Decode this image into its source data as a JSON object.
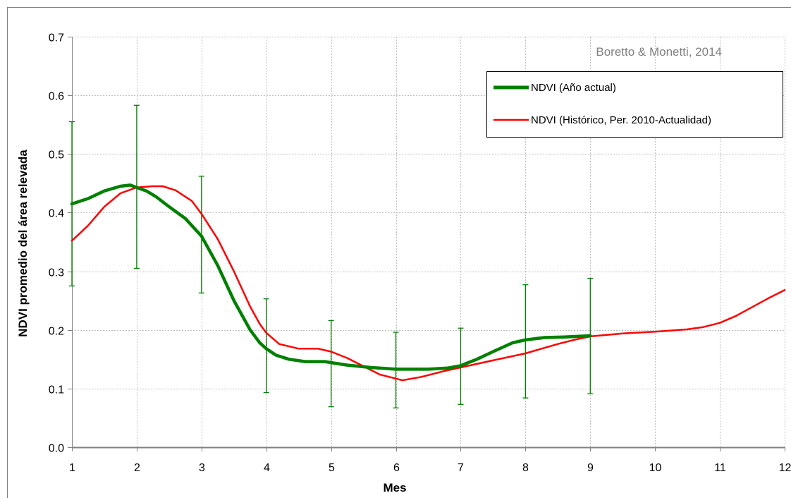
{
  "chart_data": {
    "type": "line",
    "xlabel": "Mes",
    "ylabel": "NDVI promedio del área relevada",
    "xlim": [
      1,
      12
    ],
    "ylim": [
      0,
      0.7
    ],
    "x_ticks": [
      "1",
      "2",
      "3",
      "4",
      "5",
      "6",
      "7",
      "8",
      "9",
      "10",
      "11",
      "12"
    ],
    "y_ticks": [
      "0.0",
      "0.1",
      "0.2",
      "0.3",
      "0.4",
      "0.5",
      "0.6",
      "0.7"
    ],
    "grid": true,
    "annotation": "Boretto & Monetti, 2014",
    "legend_position": "top-right",
    "series": [
      {
        "name": "NDVI (Año actual)",
        "color": "#008000",
        "x": [
          1,
          1.25,
          1.5,
          1.75,
          1.9,
          2,
          2.15,
          2.3,
          2.5,
          2.75,
          3,
          3.25,
          3.5,
          3.75,
          3.9,
          4,
          4.15,
          4.35,
          4.6,
          4.9,
          5.25,
          5.6,
          6,
          6.5,
          6.8,
          7,
          7.25,
          7.5,
          7.8,
          8,
          8.3,
          8.6,
          9
        ],
        "y": [
          0.415,
          0.424,
          0.437,
          0.445,
          0.447,
          0.443,
          0.437,
          0.427,
          0.41,
          0.39,
          0.36,
          0.31,
          0.25,
          0.2,
          0.178,
          0.168,
          0.157,
          0.15,
          0.146,
          0.146,
          0.14,
          0.136,
          0.133,
          0.133,
          0.135,
          0.139,
          0.15,
          0.163,
          0.178,
          0.183,
          0.187,
          0.188,
          0.19
        ]
      },
      {
        "name": "NDVI (Histórico, Per. 2010-Actualidad)",
        "color": "#ff0000",
        "x": [
          1,
          1.25,
          1.5,
          1.75,
          2,
          2.25,
          2.4,
          2.6,
          2.85,
          3,
          3.25,
          3.5,
          3.75,
          3.9,
          4,
          4.2,
          4.5,
          4.8,
          5,
          5.25,
          5.5,
          5.75,
          6,
          6.1,
          6.4,
          6.75,
          7,
          7.5,
          8,
          8.25,
          8.5,
          8.75,
          9,
          9.5,
          10,
          10.5,
          10.75,
          11,
          11.25,
          11.5,
          11.75,
          12
        ],
        "y": [
          0.352,
          0.378,
          0.41,
          0.433,
          0.443,
          0.445,
          0.445,
          0.438,
          0.42,
          0.398,
          0.355,
          0.3,
          0.24,
          0.21,
          0.195,
          0.176,
          0.168,
          0.168,
          0.163,
          0.152,
          0.138,
          0.124,
          0.117,
          0.114,
          0.12,
          0.13,
          0.136,
          0.148,
          0.16,
          0.168,
          0.176,
          0.183,
          0.189,
          0.194,
          0.197,
          0.201,
          0.205,
          0.212,
          0.224,
          0.239,
          0.254,
          0.268
        ]
      }
    ],
    "error_bars": {
      "color": "#008000",
      "points": [
        {
          "x": 1,
          "low": 0.275,
          "high": 0.555
        },
        {
          "x": 2,
          "low": 0.305,
          "high": 0.583
        },
        {
          "x": 3,
          "low": 0.263,
          "high": 0.462
        },
        {
          "x": 4,
          "low": 0.093,
          "high": 0.253
        },
        {
          "x": 5,
          "low": 0.069,
          "high": 0.216
        },
        {
          "x": 6,
          "low": 0.067,
          "high": 0.196
        },
        {
          "x": 7,
          "low": 0.073,
          "high": 0.203
        },
        {
          "x": 8,
          "low": 0.084,
          "high": 0.277
        },
        {
          "x": 9,
          "low": 0.091,
          "high": 0.288
        }
      ]
    }
  }
}
